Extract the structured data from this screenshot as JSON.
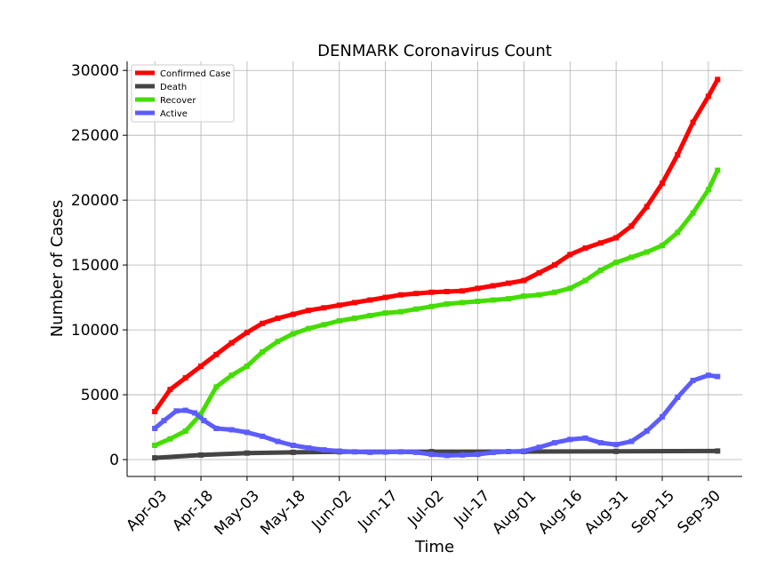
{
  "chart_data": {
    "type": "line",
    "title": "DENMARK Coronavirus Count",
    "xlabel": "Time",
    "ylabel": "Number of Cases",
    "x_tick_labels": [
      "Apr-03",
      "Apr-18",
      "May-03",
      "May-18",
      "Jun-02",
      "Jun-17",
      "Jul-02",
      "Jul-17",
      "Aug-01",
      "Aug-16",
      "Aug-31",
      "Sep-15",
      "Sep-30"
    ],
    "x_tick_days": [
      0,
      15,
      30,
      45,
      60,
      75,
      90,
      105,
      120,
      135,
      150,
      165,
      180
    ],
    "x_range_days": [
      -9,
      191
    ],
    "ylim": [
      -1300,
      30700
    ],
    "y_ticks": [
      0,
      5000,
      10000,
      15000,
      20000,
      25000,
      30000
    ],
    "grid": true,
    "legend_position": "top-left",
    "series": [
      {
        "name": "Confirmed Case",
        "color": "#ff0000",
        "x_days": [
          0,
          5,
          10,
          15,
          20,
          25,
          30,
          35,
          40,
          45,
          50,
          55,
          60,
          65,
          70,
          75,
          80,
          85,
          90,
          95,
          100,
          105,
          110,
          115,
          120,
          125,
          130,
          135,
          140,
          145,
          150,
          155,
          160,
          165,
          170,
          175,
          180,
          183
        ],
        "values": [
          3700,
          5400,
          6300,
          7200,
          8100,
          9000,
          9800,
          10500,
          10900,
          11200,
          11500,
          11700,
          11900,
          12100,
          12300,
          12500,
          12700,
          12800,
          12900,
          12950,
          13000,
          13200,
          13400,
          13600,
          13800,
          14400,
          15000,
          15800,
          16300,
          16700,
          17100,
          18000,
          19500,
          21300,
          23500,
          26000,
          28000,
          29300
        ]
      },
      {
        "name": "Death",
        "color": "#444444",
        "x_days": [
          0,
          15,
          30,
          45,
          60,
          90,
          120,
          150,
          183
        ],
        "values": [
          130,
          350,
          500,
          560,
          600,
          610,
          620,
          630,
          660
        ]
      },
      {
        "name": "Recover",
        "color": "#44dd00",
        "x_days": [
          0,
          5,
          10,
          15,
          20,
          25,
          30,
          35,
          40,
          45,
          50,
          55,
          60,
          65,
          70,
          75,
          80,
          85,
          90,
          95,
          100,
          105,
          110,
          115,
          120,
          125,
          130,
          135,
          140,
          145,
          150,
          155,
          160,
          165,
          170,
          175,
          180,
          183
        ],
        "values": [
          1100,
          1600,
          2200,
          3500,
          5600,
          6500,
          7200,
          8300,
          9100,
          9700,
          10100,
          10400,
          10700,
          10900,
          11100,
          11300,
          11400,
          11600,
          11800,
          12000,
          12100,
          12200,
          12300,
          12400,
          12600,
          12700,
          12900,
          13200,
          13800,
          14600,
          15200,
          15600,
          16000,
          16500,
          17500,
          19000,
          20800,
          22300
        ]
      },
      {
        "name": "Active",
        "color": "#5c5cff",
        "x_days": [
          0,
          3,
          7,
          10,
          13,
          16,
          20,
          25,
          30,
          35,
          40,
          45,
          50,
          55,
          60,
          65,
          70,
          75,
          80,
          85,
          90,
          95,
          100,
          105,
          110,
          115,
          120,
          125,
          130,
          135,
          140,
          145,
          150,
          155,
          160,
          165,
          170,
          175,
          180,
          183
        ],
        "values": [
          2400,
          3000,
          3750,
          3800,
          3600,
          3000,
          2400,
          2300,
          2100,
          1800,
          1400,
          1100,
          900,
          750,
          650,
          600,
          560,
          580,
          600,
          560,
          400,
          320,
          350,
          400,
          550,
          620,
          650,
          950,
          1300,
          1550,
          1650,
          1300,
          1150,
          1400,
          2200,
          3300,
          4800,
          6100,
          6500,
          6400
        ]
      }
    ]
  }
}
